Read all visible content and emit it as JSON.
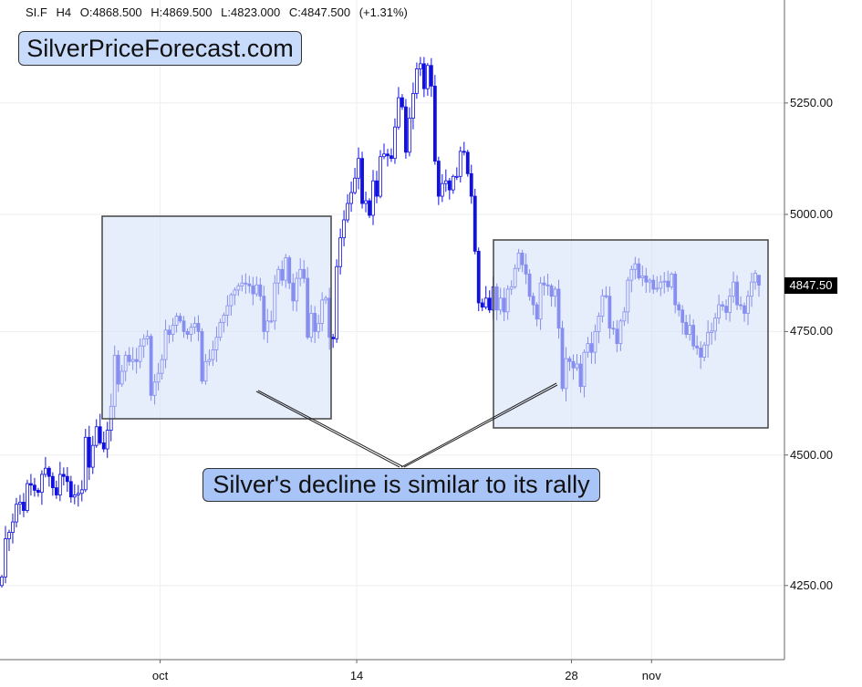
{
  "header": {
    "symbol": "SI.F",
    "timeframe": "H4",
    "open": "O:4868.500",
    "high": "H:4869.500",
    "low": "L:4823.000",
    "close": "C:4847.500",
    "change": "(+1.31%)"
  },
  "watermark_logo": "SilverPriceForecast.com",
  "annotation": "Silver's decline is similar to its rally",
  "colors": {
    "candle": "#1010e0",
    "box_fill": "#dfe8fa",
    "callout_fill": "#a9c4f7",
    "logo_fill": "#c9dbfb"
  },
  "chart_data": {
    "type": "candlestick",
    "title": "",
    "y_scale": "log",
    "ylim": [
      4170,
      5450
    ],
    "y_ticks": [
      "5250.00",
      "5000.00",
      "4750.00",
      "4500.00",
      "4250.00"
    ],
    "y_tick_values": [
      5250,
      5000,
      4750,
      4500,
      4250
    ],
    "x_ticks": [
      "oct",
      "14",
      "28",
      "nov"
    ],
    "x_tick_candle_index": [
      44,
      98,
      157,
      179
    ],
    "last_price_label": "4847.50",
    "last_price": 4847.5,
    "grid": true,
    "first_open": 4250,
    "last_candle": {
      "open": 4868.5,
      "high": 4869.5,
      "low": 4823.0,
      "close": 4847.5
    },
    "closes": [
      4266,
      4338,
      4350,
      4370,
      4404,
      4408,
      4392,
      4444,
      4441,
      4431,
      4427,
      4462,
      4474,
      4458,
      4436,
      4422,
      4462,
      4458,
      4448,
      4418,
      4422,
      4425,
      4432,
      4535,
      4476,
      4519,
      4556,
      4524,
      4512,
      4549,
      4597,
      4701,
      4642,
      4668,
      4701,
      4688,
      4692,
      4688,
      4720,
      4735,
      4740,
      4619,
      4646,
      4664,
      4692,
      4753,
      4744,
      4763,
      4782,
      4772,
      4750,
      4744,
      4759,
      4767,
      4750,
      4648,
      4688,
      4692,
      4712,
      4738,
      4769,
      4784,
      4804,
      4827,
      4837,
      4846,
      4852,
      4850,
      4846,
      4829,
      4848,
      4824,
      4750,
      4772,
      4772,
      4852,
      4881,
      4858,
      4906,
      4852,
      4814,
      4862,
      4881,
      4862,
      4738,
      4788,
      4750,
      4767,
      4816,
      4820,
      4738,
      4735,
      4887,
      4949,
      4988,
      5024,
      5048,
      5080,
      5124,
      5024,
      5030,
      4998,
      5074,
      5040,
      5128,
      5134,
      5130,
      5124,
      5195,
      5262,
      5241,
      5138,
      5215,
      5272,
      5329,
      5341,
      5283,
      5337,
      5289,
      5118,
      5040,
      5068,
      5074,
      5054,
      5084,
      5084,
      5140,
      5138,
      5090,
      5040,
      4920,
      4810,
      4801,
      4820,
      4795,
      4844,
      4795,
      4820,
      4791,
      4839,
      4844,
      4883,
      4916,
      4891,
      4871,
      4824,
      4806,
      4776,
      4852,
      4848,
      4846,
      4824,
      4839,
      4757,
      4633,
      4694,
      4688,
      4675,
      4683,
      4637,
      4707,
      4725,
      4707,
      4750,
      4782,
      4825,
      4824,
      4757,
      4755,
      4725,
      4772,
      4791,
      4858,
      4881,
      4893,
      4863,
      4867,
      4854,
      4858,
      4839,
      4841,
      4854,
      4856,
      4844,
      4871,
      4806,
      4795,
      4769,
      4744,
      4763,
      4720,
      4716,
      4697,
      4722,
      4748,
      4751,
      4778,
      4806,
      4803,
      4790,
      4824,
      4854,
      4806,
      4804,
      4788,
      4824,
      4854,
      4873,
      4847.5
    ]
  }
}
